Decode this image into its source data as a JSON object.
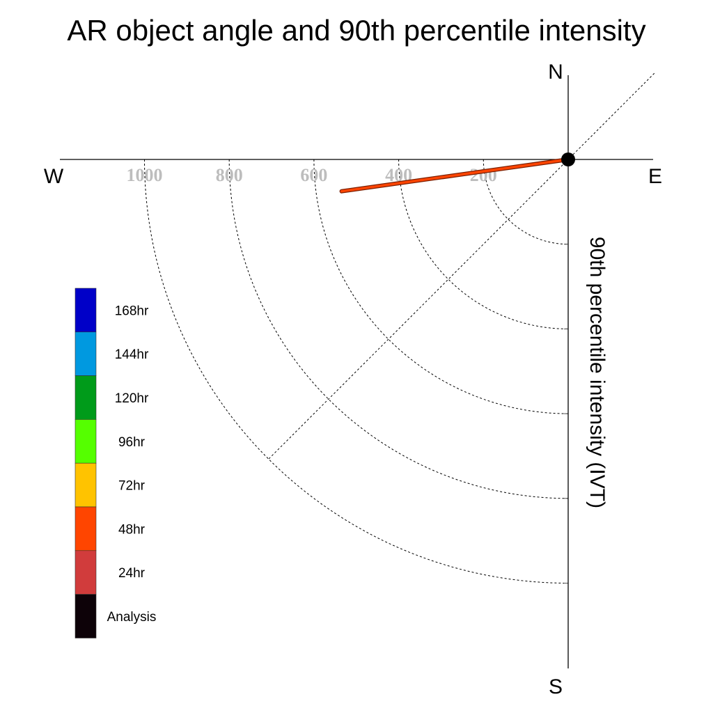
{
  "chart_data": {
    "type": "polar-quarter",
    "title": "AR object angle and 90th percentile intensity",
    "compass": {
      "north": "N",
      "south": "S",
      "east": "E",
      "west": "W"
    },
    "radial_label": "90th percentile intensity (IVT)",
    "radial_ticks": [
      200,
      400,
      600,
      800,
      1000
    ],
    "radial_max": 1200,
    "series": [
      {
        "name": "48hr",
        "color": "#ff4500",
        "points": [
          {
            "intensity": 0,
            "angle_deg": 0
          },
          {
            "intensity": 540,
            "angle_deg": 8
          }
        ]
      }
    ],
    "center_marker": {
      "color": "#000000"
    },
    "legend": [
      {
        "label": "168hr",
        "color": "#0000c8"
      },
      {
        "label": "144hr",
        "color": "#0099e0"
      },
      {
        "label": "120hr",
        "color": "#009b1a"
      },
      {
        "label": "96hr",
        "color": "#55ff00"
      },
      {
        "label": "72hr",
        "color": "#ffc300"
      },
      {
        "label": "48hr",
        "color": "#ff4500"
      },
      {
        "label": "24hr",
        "color": "#d13c3c"
      },
      {
        "label": "Analysis",
        "color": "#0d0208"
      }
    ]
  }
}
